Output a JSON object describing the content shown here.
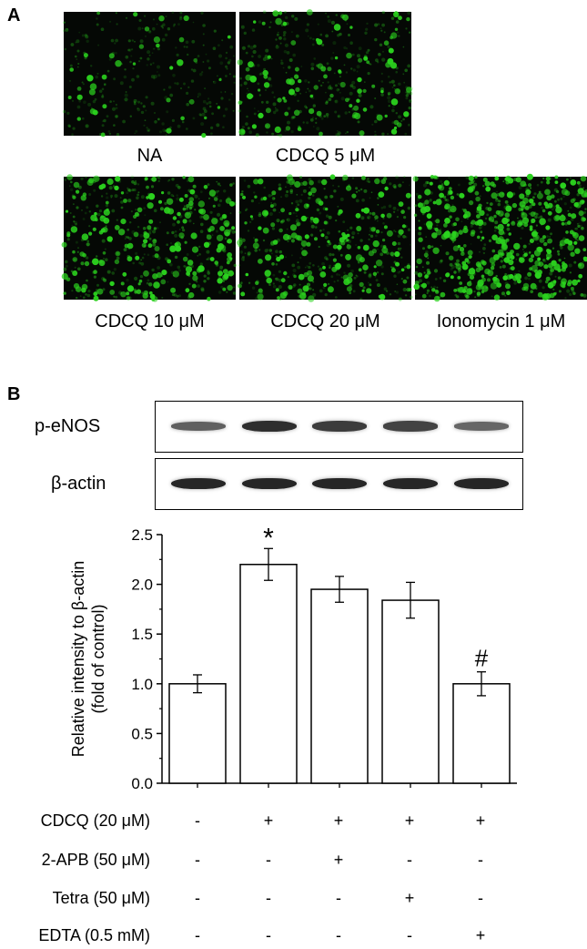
{
  "panel_a": {
    "letter": "A",
    "images": [
      {
        "caption": "NA",
        "intensity": 0.25
      },
      {
        "caption": "CDCQ 5 μM",
        "intensity": 0.45
      },
      {
        "caption": "CDCQ 10 μM",
        "intensity": 0.65
      },
      {
        "caption": "CDCQ 20 μM",
        "intensity": 0.65
      },
      {
        "caption": "Ionomycin 1 μM",
        "intensity": 1.0
      }
    ],
    "fluorescence_color": "#2bd11e"
  },
  "panel_b": {
    "letter": "B",
    "blots": [
      {
        "label": "p-eNOS",
        "band_strength": [
          0.55,
          0.9,
          0.8,
          0.75,
          0.5
        ]
      },
      {
        "label": "β-actin",
        "band_strength": [
          0.95,
          0.95,
          0.95,
          0.95,
          0.95
        ]
      }
    ],
    "treatments": [
      {
        "label": "CDCQ (20 μM)",
        "signs": [
          "-",
          "+",
          "+",
          "+",
          "+"
        ]
      },
      {
        "label": "2-APB (50 μM)",
        "signs": [
          "-",
          "-",
          "+",
          "-",
          "-"
        ]
      },
      {
        "label": "Tetra (50 μM)",
        "signs": [
          "-",
          "-",
          "-",
          "+",
          "-"
        ]
      },
      {
        "label": "EDTA (0.5 mM)",
        "signs": [
          "-",
          "-",
          "-",
          "-",
          "+"
        ]
      }
    ]
  },
  "chart_data": {
    "type": "bar",
    "categories": [
      "",
      "",
      "",
      "",
      ""
    ],
    "values": [
      1.0,
      2.2,
      1.95,
      1.84,
      1.0
    ],
    "errors": [
      0.09,
      0.16,
      0.13,
      0.18,
      0.12
    ],
    "annotations": [
      "",
      "*",
      "",
      "",
      "#"
    ],
    "ylabel": "Relative intensity to β-actin (fold of control)",
    "ylabel_lines": [
      "Relative intensity to β-actin",
      "(fold of control)"
    ],
    "ylim": [
      0,
      2.5
    ],
    "yticks": [
      "0.0",
      "0.5",
      "1.0",
      "1.5",
      "2.0",
      "2.5"
    ],
    "grid": false
  }
}
